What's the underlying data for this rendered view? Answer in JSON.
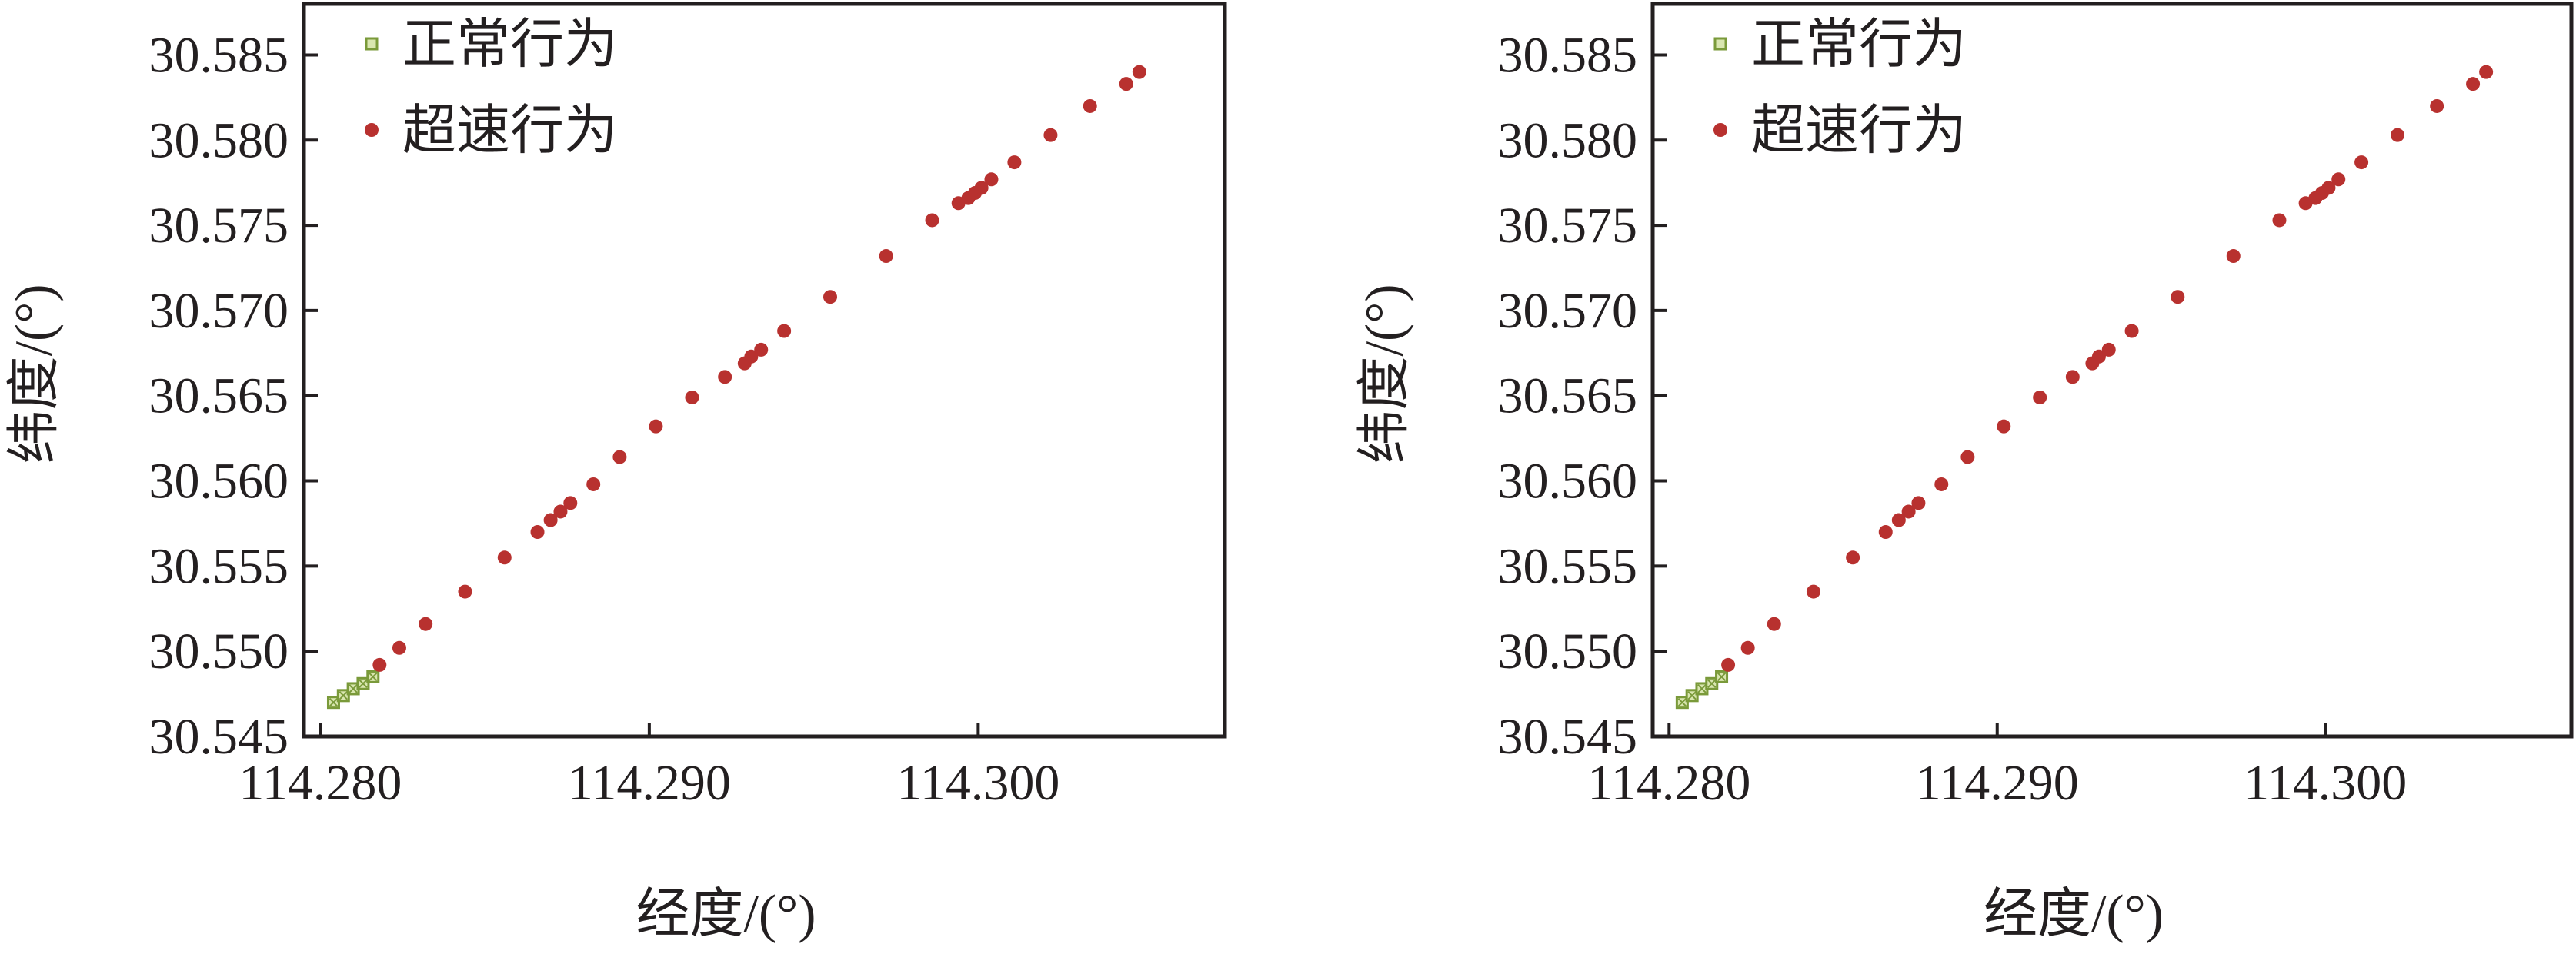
{
  "chart_data": [
    {
      "type": "scatter",
      "xlabel": "经度/(°)",
      "ylabel": "纬度/(°)",
      "xlim": [
        114.2795,
        114.3075
      ],
      "ylim": [
        30.545,
        30.588
      ],
      "xticks": [
        114.28,
        114.29,
        114.3
      ],
      "xtick_labels": [
        "114.280",
        "114.290",
        "114.300"
      ],
      "yticks": [
        30.545,
        30.55,
        30.555,
        30.56,
        30.565,
        30.57,
        30.575,
        30.58,
        30.585
      ],
      "ytick_labels": [
        "30.545",
        "30.550",
        "30.555",
        "30.560",
        "30.565",
        "30.570",
        "30.575",
        "30.580",
        "30.585"
      ],
      "legend_position": "top-left",
      "series": [
        {
          "name": "正常行为",
          "color": "#7a9a3a",
          "marker": "square",
          "x": [
            114.2804,
            114.2807,
            114.281,
            114.2813,
            114.2816
          ],
          "y": [
            30.547,
            30.5474,
            30.5478,
            30.5481,
            30.5485
          ]
        },
        {
          "name": "超速行为",
          "color": "#b8312f",
          "marker": "circle",
          "x": [
            114.2818,
            114.2824,
            114.2832,
            114.2844,
            114.2856,
            114.2866,
            114.287,
            114.2873,
            114.2876,
            114.2883,
            114.2891,
            114.2902,
            114.2913,
            114.2923,
            114.2929,
            114.2931,
            114.2934,
            114.2941,
            114.2955,
            114.2972,
            114.2986,
            114.2994,
            114.2997,
            114.2999,
            114.3001,
            114.3004,
            114.3011,
            114.3022,
            114.3034,
            114.3045,
            114.3049
          ],
          "y": [
            30.5492,
            30.5502,
            30.5516,
            30.5535,
            30.5555,
            30.557,
            30.5577,
            30.5582,
            30.5587,
            30.5598,
            30.5614,
            30.5632,
            30.5649,
            30.5661,
            30.5669,
            30.5673,
            30.5677,
            30.5688,
            30.5708,
            30.5732,
            30.5753,
            30.5763,
            30.5766,
            30.5769,
            30.5772,
            30.5777,
            30.5787,
            30.5803,
            30.582,
            30.5833,
            30.584
          ]
        }
      ]
    },
    {
      "type": "scatter",
      "xlabel": "经度/(°)",
      "ylabel": "纬度/(°)",
      "xlim": [
        114.2795,
        114.3075
      ],
      "ylim": [
        30.545,
        30.588
      ],
      "xticks": [
        114.28,
        114.29,
        114.3
      ],
      "xtick_labels": [
        "114.280",
        "114.290",
        "114.300"
      ],
      "yticks": [
        30.545,
        30.55,
        30.555,
        30.56,
        30.565,
        30.57,
        30.575,
        30.58,
        30.585
      ],
      "ytick_labels": [
        "30.545",
        "30.550",
        "30.555",
        "30.560",
        "30.565",
        "30.570",
        "30.575",
        "30.580",
        "30.585"
      ],
      "legend_position": "top-left",
      "series": [
        {
          "name": "正常行为",
          "color": "#7a9a3a",
          "marker": "square",
          "x": [
            114.2804,
            114.2807,
            114.281,
            114.2813,
            114.2816
          ],
          "y": [
            30.547,
            30.5474,
            30.5478,
            30.5481,
            30.5485
          ]
        },
        {
          "name": "超速行为",
          "color": "#b8312f",
          "marker": "circle",
          "x": [
            114.2818,
            114.2824,
            114.2832,
            114.2844,
            114.2856,
            114.2866,
            114.287,
            114.2873,
            114.2876,
            114.2883,
            114.2891,
            114.2902,
            114.2913,
            114.2923,
            114.2929,
            114.2931,
            114.2934,
            114.2941,
            114.2955,
            114.2972,
            114.2986,
            114.2994,
            114.2997,
            114.2999,
            114.3001,
            114.3004,
            114.3011,
            114.3022,
            114.3034,
            114.3045,
            114.3049
          ],
          "y": [
            30.5492,
            30.5502,
            30.5516,
            30.5535,
            30.5555,
            30.557,
            30.5577,
            30.5582,
            30.5587,
            30.5598,
            30.5614,
            30.5632,
            30.5649,
            30.5661,
            30.5669,
            30.5673,
            30.5677,
            30.5688,
            30.5708,
            30.5732,
            30.5753,
            30.5763,
            30.5766,
            30.5769,
            30.5772,
            30.5777,
            30.5787,
            30.5803,
            30.582,
            30.5833,
            30.584
          ]
        }
      ]
    }
  ]
}
